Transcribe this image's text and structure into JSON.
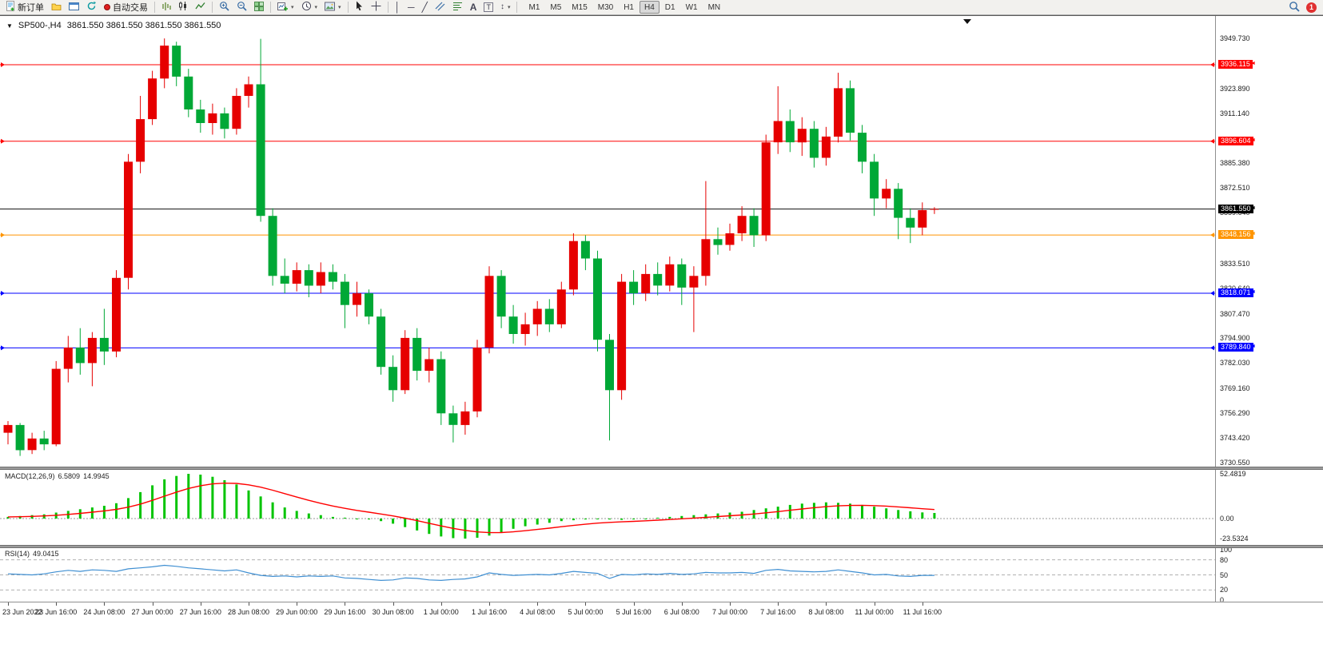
{
  "toolbar": {
    "new_order_label": "新订单",
    "autotrading_label": "自动交易",
    "timeframes": [
      "M1",
      "M5",
      "M15",
      "M30",
      "H1",
      "H4",
      "D1",
      "W1",
      "MN"
    ],
    "active_timeframe": "H4",
    "notification_count": "1",
    "icons": {
      "dropdown_caret": "▾",
      "vertical_line": "│",
      "horizontal_line": "─",
      "trendline": "╱",
      "text_tool": "A",
      "label_tool": "T",
      "arrow_tool": "↕",
      "axis_arrow": "◄"
    }
  },
  "chart": {
    "collapse_arrow": "▼",
    "symbol_period": "SP500-,H4",
    "ohlc_text": "3861.550 3861.550 3861.550 3861.550"
  },
  "macd_panel": {
    "label": "MACD(12,26,9)",
    "main_value": "6.5809",
    "signal_value": "14.9945",
    "axis_labels": [
      {
        "text": "52.4819",
        "value": 52.4819
      },
      {
        "text": "0.00",
        "value": 0
      },
      {
        "text": "-23.5324",
        "value": -23.5324
      }
    ]
  },
  "rsi_panel": {
    "label": "RSI(14)",
    "value": "49.0415",
    "axis_labels": [
      {
        "text": "100",
        "value": 100
      },
      {
        "text": "80",
        "value": 80
      },
      {
        "text": "50",
        "value": 50
      },
      {
        "text": "20",
        "value": 20
      },
      {
        "text": "0",
        "value": 0
      }
    ],
    "dashed_levels": [
      80,
      50,
      20
    ]
  },
  "chart_data": {
    "type": "candlestick",
    "symbol": "SP500-",
    "period": "H4",
    "price_axis": {
      "min": 3730.55,
      "max": 3949.73,
      "labels": [
        "3949.730",
        "3923.890",
        "3911.140",
        "3885.380",
        "3872.510",
        "3859.640",
        "3833.510",
        "3820.640",
        "3807.470",
        "3794.900",
        "3782.030",
        "3769.160",
        "3756.290",
        "3743.420",
        "3730.550"
      ]
    },
    "current_price": {
      "label": "3861.550",
      "value": 3861.55,
      "color": "#000000"
    },
    "levels": [
      {
        "label": "3936.115",
        "value": 3936.115,
        "color": "#ff0000"
      },
      {
        "label": "3896.604",
        "value": 3896.604,
        "color": "#ff0000"
      },
      {
        "label": "3848.156",
        "value": 3848.156,
        "color": "#ff9500"
      },
      {
        "label": "3818.071",
        "value": 3818.071,
        "color": "#0000ff"
      },
      {
        "label": "3789.840",
        "value": 3789.84,
        "color": "#0000ff"
      }
    ],
    "colors": {
      "bull": "#e60000",
      "bear": "#00a836",
      "macd_hist": "#00c400",
      "macd_signal": "#ff0000",
      "rsi_line": "#3f8fd2"
    },
    "candles_ohlc": [
      [
        3746,
        3752,
        3740,
        3750
      ],
      [
        3750,
        3751,
        3734,
        3737
      ],
      [
        3737,
        3746,
        3735,
        3743
      ],
      [
        3743,
        3747,
        3737,
        3740
      ],
      [
        3740,
        3783,
        3739,
        3779
      ],
      [
        3779,
        3796,
        3772,
        3790
      ],
      [
        3790,
        3800,
        3776,
        3782
      ],
      [
        3782,
        3798,
        3770,
        3795
      ],
      [
        3795,
        3810,
        3781,
        3788
      ],
      [
        3788,
        3830,
        3785,
        3826
      ],
      [
        3826,
        3890,
        3820,
        3886
      ],
      [
        3886,
        3920,
        3880,
        3908
      ],
      [
        3908,
        3933,
        3905,
        3929
      ],
      [
        3929,
        3949.7,
        3924,
        3946
      ],
      [
        3946,
        3948,
        3925,
        3930
      ],
      [
        3930,
        3934,
        3909,
        3913
      ],
      [
        3913,
        3918,
        3901,
        3906
      ],
      [
        3906,
        3916,
        3900,
        3911
      ],
      [
        3911,
        3914,
        3898,
        3903
      ],
      [
        3903,
        3924,
        3900,
        3920
      ],
      [
        3920,
        3930,
        3914,
        3926
      ],
      [
        3926,
        3949.5,
        3855,
        3858
      ],
      [
        3858,
        3862,
        3822,
        3827
      ],
      [
        3827,
        3836,
        3818,
        3823
      ],
      [
        3823,
        3834,
        3819,
        3830
      ],
      [
        3830,
        3833,
        3816,
        3822
      ],
      [
        3822,
        3834,
        3818,
        3829
      ],
      [
        3829,
        3833,
        3820,
        3824
      ],
      [
        3824,
        3828,
        3800,
        3812
      ],
      [
        3812,
        3824,
        3806,
        3818
      ],
      [
        3818,
        3820,
        3802,
        3806
      ],
      [
        3806,
        3810,
        3776,
        3780
      ],
      [
        3780,
        3786,
        3762,
        3768
      ],
      [
        3768,
        3799,
        3766,
        3795
      ],
      [
        3795,
        3800,
        3773,
        3778
      ],
      [
        3778,
        3790,
        3772,
        3784
      ],
      [
        3784,
        3788,
        3750,
        3756
      ],
      [
        3756,
        3760,
        3741,
        3750
      ],
      [
        3750,
        3762,
        3745,
        3757
      ],
      [
        3757,
        3794,
        3754,
        3790
      ],
      [
        3790,
        3832,
        3787,
        3827
      ],
      [
        3827,
        3830,
        3800,
        3806
      ],
      [
        3806,
        3812,
        3792,
        3797
      ],
      [
        3797,
        3808,
        3791,
        3802
      ],
      [
        3802,
        3814,
        3796,
        3810
      ],
      [
        3810,
        3815,
        3798,
        3802
      ],
      [
        3802,
        3824,
        3800,
        3820
      ],
      [
        3820,
        3849,
        3817,
        3845
      ],
      [
        3845,
        3848,
        3830,
        3836
      ],
      [
        3836,
        3840,
        3788,
        3794
      ],
      [
        3794,
        3797,
        3742,
        3768
      ],
      [
        3768,
        3828,
        3763,
        3824
      ],
      [
        3824,
        3830,
        3812,
        3818
      ],
      [
        3818,
        3833,
        3814,
        3828
      ],
      [
        3828,
        3834,
        3817,
        3822
      ],
      [
        3822,
        3837,
        3819,
        3833
      ],
      [
        3833,
        3836,
        3812,
        3821
      ],
      [
        3821,
        3832,
        3798,
        3827
      ],
      [
        3827,
        3876,
        3822,
        3846
      ],
      [
        3846,
        3852,
        3838,
        3843
      ],
      [
        3843,
        3854,
        3840,
        3849
      ],
      [
        3849,
        3863,
        3845,
        3858
      ],
      [
        3858,
        3862,
        3842,
        3848
      ],
      [
        3848,
        3900,
        3845,
        3896
      ],
      [
        3896,
        3925,
        3890,
        3907
      ],
      [
        3907,
        3913,
        3891,
        3896
      ],
      [
        3896,
        3909,
        3889,
        3903
      ],
      [
        3903,
        3907,
        3883,
        3888
      ],
      [
        3888,
        3904,
        3884,
        3899
      ],
      [
        3899,
        3932,
        3896,
        3924
      ],
      [
        3924,
        3928,
        3897,
        3901
      ],
      [
        3901,
        3905,
        3880,
        3886
      ],
      [
        3886,
        3890,
        3858,
        3867
      ],
      [
        3867,
        3877,
        3862,
        3872
      ],
      [
        3872,
        3875,
        3846,
        3857
      ],
      [
        3857,
        3862,
        3844,
        3852
      ],
      [
        3852,
        3865,
        3848,
        3861
      ],
      [
        3861.6,
        3862.5,
        3859,
        3861.6
      ]
    ],
    "macd_histogram": [
      2,
      3,
      4,
      5,
      7,
      9,
      11,
      13,
      15,
      18,
      24,
      31,
      39,
      46,
      50,
      52.5,
      51.5,
      49,
      45,
      40,
      33,
      26,
      19,
      13,
      9,
      6,
      4,
      2,
      1,
      0,
      -1,
      -3,
      -6,
      -10,
      -14,
      -18,
      -21,
      -23,
      -23.5,
      -22.5,
      -20,
      -16,
      -12,
      -9,
      -7,
      -5,
      -3,
      -2,
      -1,
      0,
      -1,
      -1.5,
      -1,
      0,
      1,
      2,
      3,
      4,
      5,
      6,
      7,
      8,
      10,
      12,
      14,
      16,
      17.5,
      18.5,
      19,
      18.5,
      17.5,
      16,
      14,
      12,
      10,
      8.5,
      7.2,
      6.58
    ],
    "rsi_values": [
      52,
      51,
      50,
      52,
      56,
      59,
      57,
      60,
      59,
      57,
      62,
      64,
      66,
      69,
      67,
      64,
      62,
      60,
      58,
      60,
      54,
      49,
      47,
      48,
      46,
      48,
      47,
      48,
      44,
      43,
      41,
      39,
      40,
      44,
      43,
      40,
      39,
      41,
      42,
      46,
      54,
      51,
      49,
      50,
      51,
      50,
      53,
      57,
      55,
      53,
      43,
      51,
      50,
      52,
      51,
      53,
      51,
      52,
      55,
      54,
      54,
      55,
      53,
      59,
      61,
      58,
      57,
      56,
      57,
      60,
      57,
      54,
      50,
      51,
      48,
      47,
      49,
      49
    ],
    "time_axis": [
      {
        "label": "23 Jun 2022",
        "i": 0
      },
      {
        "label": "23 Jun 16:00",
        "i": 4
      },
      {
        "label": "24 Jun 08:00",
        "i": 8
      },
      {
        "label": "27 Jun 00:00",
        "i": 12
      },
      {
        "label": "27 Jun 16:00",
        "i": 16
      },
      {
        "label": "28 Jun 08:00",
        "i": 20
      },
      {
        "label": "29 Jun 00:00",
        "i": 24
      },
      {
        "label": "29 Jun 16:00",
        "i": 28
      },
      {
        "label": "30 Jun 08:00",
        "i": 32
      },
      {
        "label": "1 Jul 00:00",
        "i": 36
      },
      {
        "label": "1 Jul 16:00",
        "i": 40
      },
      {
        "label": "4 Jul 08:00",
        "i": 44
      },
      {
        "label": "5 Jul 00:00",
        "i": 48
      },
      {
        "label": "5 Jul 16:00",
        "i": 52
      },
      {
        "label": "6 Jul 08:00",
        "i": 56
      },
      {
        "label": "7 Jul 00:00",
        "i": 60
      },
      {
        "label": "7 Jul 16:00",
        "i": 64
      },
      {
        "label": "8 Jul 08:00",
        "i": 68
      },
      {
        "label": "11 Jul 00:00",
        "i": 72
      },
      {
        "label": "11 Jul 16:00",
        "i": 76
      }
    ]
  }
}
